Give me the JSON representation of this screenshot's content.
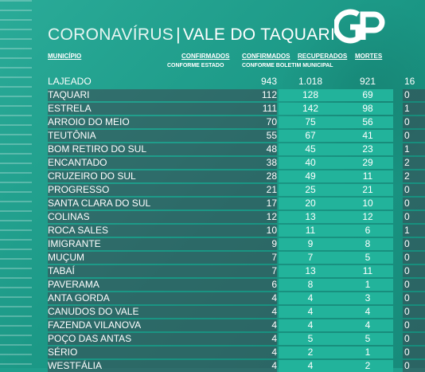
{
  "title": {
    "main": "CORONAVÍRUS",
    "separator": "|",
    "place": "VALE DO TAQUARI"
  },
  "logo": {
    "text": "GP"
  },
  "headers": {
    "municipio": "MUNICÍPIO",
    "confirmados_estado": "CONFIRMADOS",
    "confirmados_estado_sub": "CONFORME ESTADO",
    "confirmados_boletim": "CONFIRMADOS",
    "confirmados_boletim_sub": "CONFORME BOLETIM MUNICIPAL",
    "recuperados": "RECUPERADOS",
    "mortes": "MORTES"
  },
  "rows": [
    {
      "municipio": "LAJEADO",
      "conf_estado": "943",
      "conf_boletim": "1.018",
      "recuperados": "921",
      "mortes": "16"
    },
    {
      "municipio": "TAQUARI",
      "conf_estado": "112",
      "conf_boletim": "128",
      "recuperados": "69",
      "mortes": "0"
    },
    {
      "municipio": "ESTRELA",
      "conf_estado": "111",
      "conf_boletim": "142",
      "recuperados": "98",
      "mortes": "1"
    },
    {
      "municipio": "ARROIO DO MEIO",
      "conf_estado": "70",
      "conf_boletim": "75",
      "recuperados": "56",
      "mortes": "0"
    },
    {
      "municipio": "TEUTÔNIA",
      "conf_estado": "55",
      "conf_boletim": "67",
      "recuperados": "41",
      "mortes": "0"
    },
    {
      "municipio": "BOM RETIRO DO SUL",
      "conf_estado": "48",
      "conf_boletim": "45",
      "recuperados": "23",
      "mortes": "1"
    },
    {
      "municipio": "ENCANTADO",
      "conf_estado": "38",
      "conf_boletim": "40",
      "recuperados": "29",
      "mortes": "2"
    },
    {
      "municipio": "CRUZEIRO DO SUL",
      "conf_estado": "28",
      "conf_boletim": "49",
      "recuperados": "11",
      "mortes": "2"
    },
    {
      "municipio": "PROGRESSO",
      "conf_estado": "21",
      "conf_boletim": "25",
      "recuperados": "21",
      "mortes": "0"
    },
    {
      "municipio": "SANTA CLARA DO SUL",
      "conf_estado": "17",
      "conf_boletim": "20",
      "recuperados": "10",
      "mortes": "0"
    },
    {
      "municipio": "COLINAS",
      "conf_estado": "12",
      "conf_boletim": "13",
      "recuperados": "12",
      "mortes": "0"
    },
    {
      "municipio": "ROCA SALES",
      "conf_estado": "10",
      "conf_boletim": "11",
      "recuperados": "6",
      "mortes": "1"
    },
    {
      "municipio": "IMIGRANTE",
      "conf_estado": "9",
      "conf_boletim": "9",
      "recuperados": "8",
      "mortes": "0"
    },
    {
      "municipio": "MUÇUM",
      "conf_estado": "7",
      "conf_boletim": "7",
      "recuperados": "5",
      "mortes": "0"
    },
    {
      "municipio": "TABAÍ",
      "conf_estado": "7",
      "conf_boletim": "13",
      "recuperados": "11",
      "mortes": "0"
    },
    {
      "municipio": "PAVERAMA",
      "conf_estado": "6",
      "conf_boletim": "8",
      "recuperados": "1",
      "mortes": "0"
    },
    {
      "municipio": "ANTA GORDA",
      "conf_estado": "4",
      "conf_boletim": "4",
      "recuperados": "3",
      "mortes": "0"
    },
    {
      "municipio": "CANUDOS DO VALE",
      "conf_estado": "4",
      "conf_boletim": "4",
      "recuperados": "4",
      "mortes": "0"
    },
    {
      "municipio": "FAZENDA VILANOVA",
      "conf_estado": "4",
      "conf_boletim": "4",
      "recuperados": "4",
      "mortes": "0"
    },
    {
      "municipio": "POÇO DAS ANTAS",
      "conf_estado": "4",
      "conf_boletim": "5",
      "recuperados": "5",
      "mortes": "0"
    },
    {
      "municipio": "SÉRIO",
      "conf_estado": "4",
      "conf_boletim": "2",
      "recuperados": "1",
      "mortes": "0"
    },
    {
      "municipio": "WESTFÁLIA",
      "conf_estado": "4",
      "conf_boletim": "4",
      "recuperados": "2",
      "mortes": "0"
    }
  ]
}
